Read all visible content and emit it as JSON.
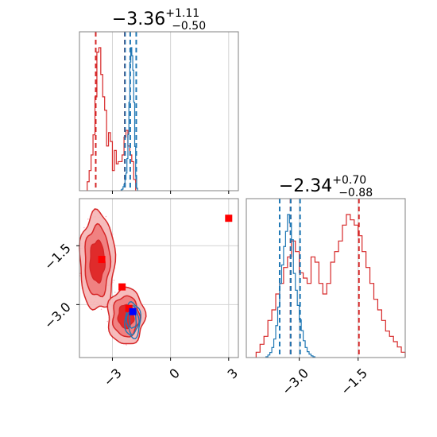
{
  "chart_data": [
    {
      "panel": "top-left",
      "type": "histogram",
      "title": {
        "main": "−3.36",
        "sup": "+1.11",
        "sub": "−0.50"
      },
      "xlim": [
        -4.7,
        3.5
      ],
      "xticks": [
        -3,
        0,
        3
      ],
      "grid": true,
      "series": [
        {
          "color": "#d62728",
          "bin_edges": [
            -4.3,
            -4.2,
            -4.1,
            -4.0,
            -3.9,
            -3.8,
            -3.7,
            -3.6,
            -3.5,
            -3.4,
            -3.3,
            -3.2,
            -3.1,
            -3.0,
            -2.9,
            -2.8,
            -2.7,
            -2.6,
            -2.5,
            -2.4,
            -2.3,
            -2.2,
            -2.1,
            -2.0,
            -1.9,
            -1.8
          ],
          "counts": [
            4,
            9,
            16,
            25,
            42,
            62,
            64,
            52,
            42,
            36,
            20,
            26,
            22,
            9,
            18,
            12,
            13,
            13,
            16,
            24,
            27,
            20,
            16,
            13,
            5
          ],
          "quantiles": [
            -3.86,
            -2.36,
            -2.36
          ]
        },
        {
          "color": "#1f77b4",
          "bin_edges": [
            -2.55,
            -2.5,
            -2.45,
            -2.4,
            -2.35,
            -2.3,
            -2.25,
            -2.2,
            -2.15,
            -2.1,
            -2.05,
            -2.0,
            -1.95,
            -1.9,
            -1.85,
            -1.8,
            -1.75,
            -1.7
          ],
          "counts": [
            1,
            2,
            5,
            8,
            14,
            22,
            40,
            70,
            110,
            160,
            178,
            168,
            150,
            110,
            55,
            18,
            3
          ],
          "quantiles": [
            -2.35,
            -2.08,
            -1.77
          ]
        }
      ]
    },
    {
      "panel": "bottom-left",
      "type": "contour",
      "xlim": [
        -4.7,
        3.5
      ],
      "ylim": [
        -4.35,
        -0.3
      ],
      "xticks": [
        -3,
        0,
        3
      ],
      "yticks": [
        -3.0,
        -1.5
      ],
      "xticklabels": [
        "−3",
        "0",
        "3"
      ],
      "yticklabels": [
        "−3.0",
        "−1.5"
      ],
      "grid": true,
      "red_regions": [
        {
          "cx": -3.78,
          "cy": -1.9,
          "rx": 0.9,
          "ry": 1.25
        },
        {
          "cx": -2.3,
          "cy": -3.3,
          "rx": 0.95,
          "ry": 0.72
        }
      ],
      "blue_region": {
        "cx": -1.95,
        "cy": -3.4,
        "rx": 0.4,
        "ry": 0.45
      },
      "markers": [
        {
          "x": 3.0,
          "y": -0.8,
          "color": "#ff0000"
        },
        {
          "x": -3.55,
          "y": -1.85,
          "color": "#ff0000"
        },
        {
          "x": -2.5,
          "y": -2.55,
          "color": "#ff0000"
        },
        {
          "x": -2.15,
          "y": -3.1,
          "color": "#ff0000"
        },
        {
          "x": -1.95,
          "y": -3.18,
          "color": "#0000ff"
        }
      ]
    },
    {
      "panel": "bottom-right",
      "type": "histogram",
      "title": {
        "main": "−2.34",
        "sup": "+0.70",
        "sub": "−0.88"
      },
      "xlim": [
        -4.35,
        -0.3
      ],
      "xticks": [
        -3.0,
        -1.5
      ],
      "xticklabels": [
        "−3.0",
        "−1.5"
      ],
      "grid": true,
      "series": [
        {
          "color": "#d62728",
          "bin_edges": [
            -4.1,
            -4.0,
            -3.9,
            -3.8,
            -3.7,
            -3.6,
            -3.5,
            -3.4,
            -3.3,
            -3.2,
            -3.1,
            -3.0,
            -2.9,
            -2.8,
            -2.7,
            -2.6,
            -2.5,
            -2.4,
            -2.3,
            -2.2,
            -2.1,
            -2.0,
            -1.9,
            -1.8,
            -1.7,
            -1.6,
            -1.5,
            -1.4,
            -1.3,
            -1.2,
            -1.1,
            -1.0,
            -0.9,
            -0.8,
            -0.7,
            -0.6,
            -0.5,
            -0.4,
            -0.3
          ],
          "counts": [
            2,
            5,
            8,
            14,
            18,
            24,
            28,
            34,
            38,
            44,
            40,
            32,
            30,
            28,
            38,
            36,
            28,
            24,
            28,
            36,
            40,
            44,
            50,
            54,
            52,
            50,
            46,
            40,
            34,
            28,
            22,
            18,
            14,
            10,
            8,
            6,
            4,
            2
          ],
          "quantiles": [
            -3.22,
            -3.22,
            -1.48
          ]
        },
        {
          "color": "#1f77b4",
          "bin_edges": [
            -3.85,
            -3.8,
            -3.75,
            -3.7,
            -3.65,
            -3.6,
            -3.55,
            -3.5,
            -3.45,
            -3.4,
            -3.35,
            -3.3,
            -3.25,
            -3.2,
            -3.15,
            -3.1,
            -3.05,
            -3.0,
            -2.95,
            -2.9,
            -2.85,
            -2.8,
            -2.75,
            -2.7,
            -2.65,
            -2.6
          ],
          "counts": [
            1,
            3,
            6,
            12,
            22,
            38,
            60,
            88,
            110,
            132,
            150,
            170,
            160,
            140,
            100,
            80,
            62,
            45,
            32,
            20,
            12,
            7,
            4,
            2,
            1
          ],
          "quantiles": [
            -3.5,
            -3.22,
            -2.98
          ]
        }
      ]
    }
  ]
}
